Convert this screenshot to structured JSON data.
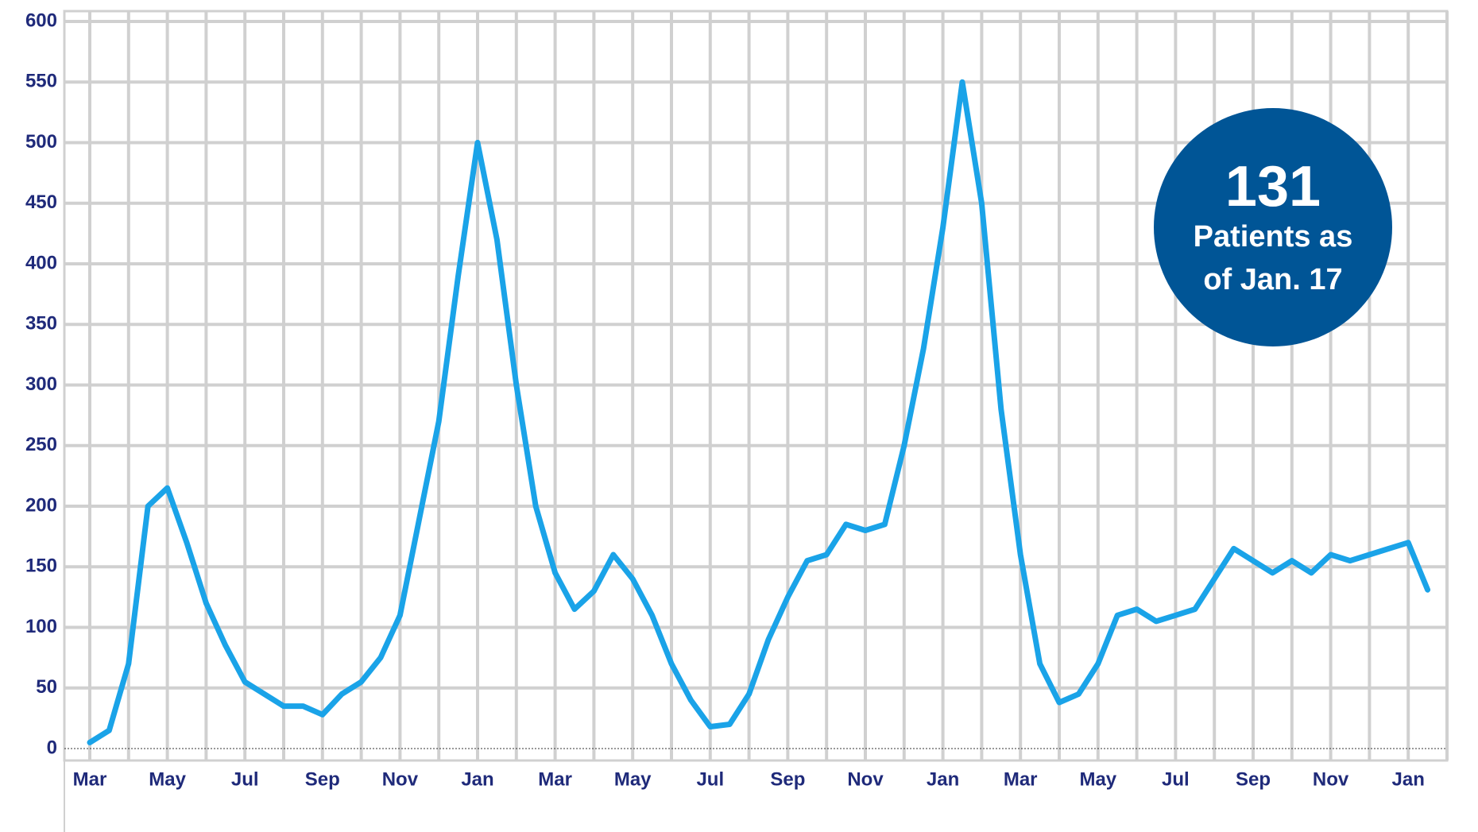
{
  "chart_data": {
    "type": "line",
    "categories": [
      "Mar",
      null,
      null,
      null,
      "May",
      null,
      null,
      null,
      "Jul",
      null,
      null,
      null,
      "Sep",
      null,
      null,
      null,
      "Nov",
      null,
      null,
      null,
      "Jan",
      null,
      null,
      null,
      "Mar",
      null,
      null,
      null,
      "May",
      null,
      null,
      null,
      "Jul",
      null,
      null,
      null,
      "Sep",
      null,
      null,
      null,
      "Nov",
      null,
      null,
      null,
      "Jan",
      null,
      null,
      null,
      "Mar",
      null,
      null,
      null,
      "May",
      null,
      null,
      null,
      "Jul",
      null,
      null,
      null,
      "Sep",
      null,
      null,
      null,
      "Nov",
      null,
      null,
      null,
      "Jan",
      null
    ],
    "values": [
      5,
      15,
      70,
      200,
      215,
      170,
      120,
      85,
      55,
      45,
      35,
      35,
      28,
      45,
      55,
      75,
      110,
      190,
      270,
      390,
      500,
      420,
      300,
      200,
      145,
      115,
      130,
      160,
      140,
      110,
      70,
      40,
      18,
      20,
      45,
      90,
      125,
      155,
      160,
      185,
      180,
      185,
      250,
      330,
      430,
      550,
      450,
      280,
      160,
      70,
      38,
      45,
      70,
      110,
      115,
      105,
      110,
      115,
      140,
      165,
      155,
      145,
      155,
      145,
      160,
      155,
      160,
      165,
      170,
      131
    ],
    "color": "#1aa3e8",
    "ylim": [
      0,
      600
    ],
    "yticks": [
      0,
      50,
      100,
      150,
      200,
      250,
      300,
      350,
      400,
      450,
      500,
      550,
      600
    ],
    "grid": true,
    "annotation": {
      "value": "131",
      "lines": [
        "Patients as",
        "of Jan. 17"
      ],
      "color": "#005596"
    }
  }
}
